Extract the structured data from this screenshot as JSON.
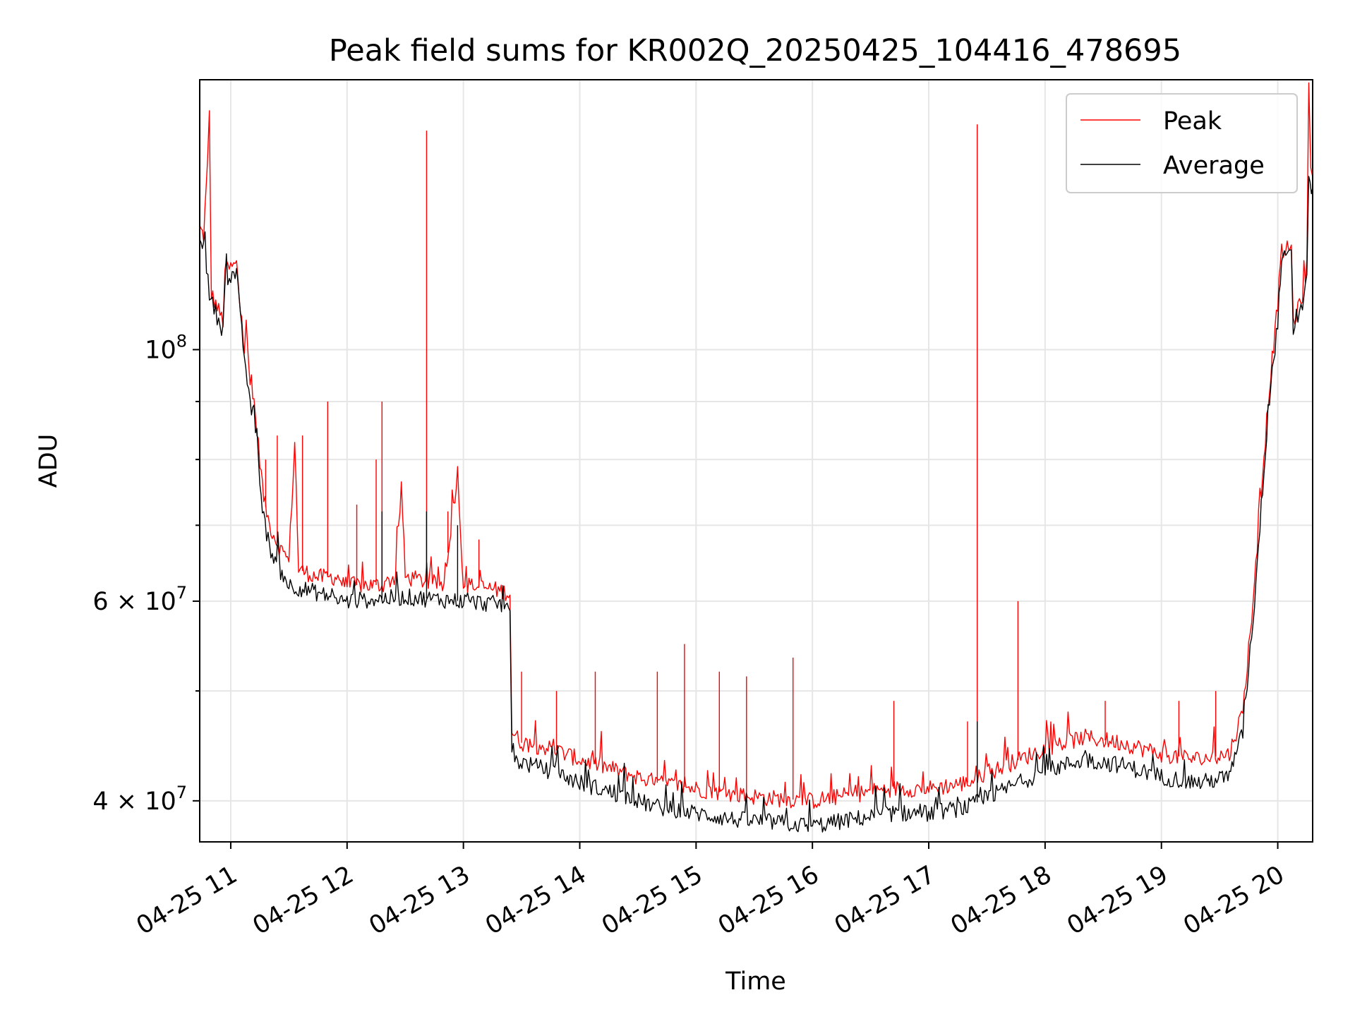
{
  "chart_data": {
    "type": "line",
    "title": "Peak field sums for KR002Q_20250425_104416_478695",
    "xlabel": "Time",
    "ylabel": "ADU",
    "yscale": "log",
    "grid": true,
    "legend_position": "top-right",
    "xlim": [
      "2025-04-25 10:44",
      "2025-04-25 20:18"
    ],
    "ylim": [
      36800000,
      173000000
    ],
    "x_ticks": [
      {
        "at": "2025-04-25 11:00",
        "label": "04-25 11"
      },
      {
        "at": "2025-04-25 12:00",
        "label": "04-25 12"
      },
      {
        "at": "2025-04-25 13:00",
        "label": "04-25 13"
      },
      {
        "at": "2025-04-25 14:00",
        "label": "04-25 14"
      },
      {
        "at": "2025-04-25 15:00",
        "label": "04-25 15"
      },
      {
        "at": "2025-04-25 16:00",
        "label": "04-25 16"
      },
      {
        "at": "2025-04-25 17:00",
        "label": "04-25 17"
      },
      {
        "at": "2025-04-25 18:00",
        "label": "04-25 18"
      },
      {
        "at": "2025-04-25 19:00",
        "label": "04-25 19"
      },
      {
        "at": "2025-04-25 20:00",
        "label": "04-25 20"
      }
    ],
    "y_ticks": [
      {
        "value": 40000000,
        "label_base": "4 × 10",
        "label_exp": "7"
      },
      {
        "value": 60000000,
        "label_base": "6 × 10",
        "label_exp": "7"
      },
      {
        "value": 100000000,
        "label_base": "10",
        "label_exp": "8"
      }
    ],
    "y_minor_ticks": [
      50000000,
      70000000,
      80000000,
      90000000
    ],
    "series": [
      {
        "name": "Peak",
        "color": "#ff0000",
        "points": [
          [
            "2025-04-25 10:44",
            128000000
          ],
          [
            "2025-04-25 10:46",
            126000000
          ],
          [
            "2025-04-25 10:48",
            145000000
          ],
          [
            "2025-04-25 10:49",
            162000000
          ],
          [
            "2025-04-25 10:50",
            112000000
          ],
          [
            "2025-04-25 10:53",
            109000000
          ],
          [
            "2025-04-25 10:56",
            106000000
          ],
          [
            "2025-04-25 10:57",
            118000000
          ],
          [
            "2025-04-25 11:00",
            118000000
          ],
          [
            "2025-04-25 11:03",
            119000000
          ],
          [
            "2025-04-25 11:05",
            108000000
          ],
          [
            "2025-04-25 11:07",
            101000000
          ],
          [
            "2025-04-25 11:08",
            107000000
          ],
          [
            "2025-04-25 11:10",
            92000000
          ],
          [
            "2025-04-25 11:12",
            90000000
          ],
          [
            "2025-04-25 11:15",
            80000000
          ],
          [
            "2025-04-25 11:17",
            74000000
          ],
          [
            "2025-04-25 11:20",
            70000000
          ],
          [
            "2025-04-25 11:25",
            67000000
          ],
          [
            "2025-04-25 11:30",
            65000000
          ],
          [
            "2025-04-25 11:33",
            83000000
          ],
          [
            "2025-04-25 11:35",
            64000000
          ],
          [
            "2025-04-25 11:45",
            63000000
          ],
          [
            "2025-04-25 11:56",
            63000000
          ],
          [
            "2025-04-25 11:58",
            62000000
          ],
          [
            "2025-04-25 12:00",
            62000000
          ],
          [
            "2025-04-25 12:18",
            62000000
          ],
          [
            "2025-04-25 12:25",
            63000000
          ],
          [
            "2025-04-25 12:28",
            76000000
          ],
          [
            "2025-04-25 12:30",
            63000000
          ],
          [
            "2025-04-25 12:50",
            62000000
          ],
          [
            "2025-04-25 12:57",
            78000000
          ],
          [
            "2025-04-25 13:00",
            62000000
          ],
          [
            "2025-04-25 13:15",
            61500000
          ],
          [
            "2025-04-25 13:24",
            61000000
          ],
          [
            "2025-04-25 13:25",
            46000000
          ],
          [
            "2025-04-25 13:30",
            45000000
          ],
          [
            "2025-04-25 13:45",
            44500000
          ],
          [
            "2025-04-25 14:00",
            43500000
          ],
          [
            "2025-04-25 14:20",
            42500000
          ],
          [
            "2025-04-25 14:40",
            41500000
          ],
          [
            "2025-04-25 15:00",
            41000000
          ],
          [
            "2025-04-25 15:20",
            40500000
          ],
          [
            "2025-04-25 15:40",
            40200000
          ],
          [
            "2025-04-25 16:00",
            40000000
          ],
          [
            "2025-04-25 16:20",
            40500000
          ],
          [
            "2025-04-25 16:40",
            41000000
          ],
          [
            "2025-04-25 17:00",
            41000000
          ],
          [
            "2025-04-25 17:20",
            41500000
          ],
          [
            "2025-04-25 17:40",
            43000000
          ],
          [
            "2025-04-25 18:00",
            44500000
          ],
          [
            "2025-04-25 18:20",
            45500000
          ],
          [
            "2025-04-25 18:40",
            45000000
          ],
          [
            "2025-04-25 19:00",
            44000000
          ],
          [
            "2025-04-25 19:20",
            43500000
          ],
          [
            "2025-04-25 19:35",
            44000000
          ],
          [
            "2025-04-25 19:42",
            48000000
          ],
          [
            "2025-04-25 19:48",
            62000000
          ],
          [
            "2025-04-25 19:55",
            90000000
          ],
          [
            "2025-04-25 20:00",
            110000000
          ],
          [
            "2025-04-25 20:02",
            122000000
          ],
          [
            "2025-04-25 20:07",
            123000000
          ],
          [
            "2025-04-25 20:08",
            106000000
          ],
          [
            "2025-04-25 20:12",
            110000000
          ],
          [
            "2025-04-25 20:15",
            118000000
          ],
          [
            "2025-04-25 20:16",
            172000000
          ],
          [
            "2025-04-25 20:17",
            145000000
          ],
          [
            "2025-04-25 20:18",
            142000000
          ]
        ],
        "spikes": [
          [
            "2025-04-25 11:08",
            107000000
          ],
          [
            "2025-04-25 11:18",
            80000000
          ],
          [
            "2025-04-25 11:24",
            84000000
          ],
          [
            "2025-04-25 11:37",
            84000000
          ],
          [
            "2025-04-25 11:50",
            90000000
          ],
          [
            "2025-04-25 12:05",
            73000000
          ],
          [
            "2025-04-25 12:15",
            80000000
          ],
          [
            "2025-04-25 12:18",
            90000000
          ],
          [
            "2025-04-25 12:41",
            156000000
          ],
          [
            "2025-04-25 12:52",
            72000000
          ],
          [
            "2025-04-25 13:08",
            68000000
          ],
          [
            "2025-04-25 13:30",
            52000000
          ],
          [
            "2025-04-25 13:48",
            50000000
          ],
          [
            "2025-04-25 14:08",
            52000000
          ],
          [
            "2025-04-25 14:40",
            52000000
          ],
          [
            "2025-04-25 14:54",
            55000000
          ],
          [
            "2025-04-25 15:12",
            52000000
          ],
          [
            "2025-04-25 15:26",
            51500000
          ],
          [
            "2025-04-25 15:50",
            53500000
          ],
          [
            "2025-04-25 16:42",
            49000000
          ],
          [
            "2025-04-25 17:20",
            47000000
          ],
          [
            "2025-04-25 17:25",
            158000000
          ],
          [
            "2025-04-25 17:46",
            60000000
          ],
          [
            "2025-04-25 18:31",
            49000000
          ],
          [
            "2025-04-25 19:09",
            49000000
          ],
          [
            "2025-04-25 19:28",
            50000000
          ]
        ]
      },
      {
        "name": "Average",
        "color": "#000000",
        "points": [
          [
            "2025-04-25 10:44",
            127000000
          ],
          [
            "2025-04-25 10:46",
            123000000
          ],
          [
            "2025-04-25 10:49",
            112000000
          ],
          [
            "2025-04-25 10:53",
            107000000
          ],
          [
            "2025-04-25 10:56",
            104000000
          ],
          [
            "2025-04-25 10:57",
            116000000
          ],
          [
            "2025-04-25 11:00",
            116000000
          ],
          [
            "2025-04-25 11:03",
            117000000
          ],
          [
            "2025-04-25 11:05",
            106000000
          ],
          [
            "2025-04-25 11:07",
            99000000
          ],
          [
            "2025-04-25 11:10",
            89000000
          ],
          [
            "2025-04-25 11:12",
            88000000
          ],
          [
            "2025-04-25 11:15",
            77000000
          ],
          [
            "2025-04-25 11:17",
            71000000
          ],
          [
            "2025-04-25 11:20",
            67000000
          ],
          [
            "2025-04-25 11:25",
            64000000
          ],
          [
            "2025-04-25 11:30",
            62000000
          ],
          [
            "2025-04-25 11:45",
            61000000
          ],
          [
            "2025-04-25 11:58",
            60000000
          ],
          [
            "2025-04-25 12:00",
            60000000
          ],
          [
            "2025-04-25 12:30",
            60500000
          ],
          [
            "2025-04-25 13:00",
            60000000
          ],
          [
            "2025-04-25 13:24",
            59500000
          ],
          [
            "2025-04-25 13:25",
            43500000
          ],
          [
            "2025-04-25 13:45",
            42500000
          ],
          [
            "2025-04-25 14:00",
            41500000
          ],
          [
            "2025-04-25 14:20",
            40500000
          ],
          [
            "2025-04-25 14:40",
            39500000
          ],
          [
            "2025-04-25 15:00",
            39000000
          ],
          [
            "2025-04-25 15:20",
            38500000
          ],
          [
            "2025-04-25 15:40",
            38300000
          ],
          [
            "2025-04-25 16:00",
            38000000
          ],
          [
            "2025-04-25 16:20",
            38500000
          ],
          [
            "2025-04-25 16:40",
            39000000
          ],
          [
            "2025-04-25 17:00",
            39000000
          ],
          [
            "2025-04-25 17:20",
            39500000
          ],
          [
            "2025-04-25 17:40",
            41000000
          ],
          [
            "2025-04-25 18:00",
            42500000
          ],
          [
            "2025-04-25 18:20",
            43500000
          ],
          [
            "2025-04-25 18:40",
            43000000
          ],
          [
            "2025-04-25 19:00",
            42000000
          ],
          [
            "2025-04-25 19:20",
            41500000
          ],
          [
            "2025-04-25 19:35",
            42000000
          ],
          [
            "2025-04-25 19:42",
            46000000
          ],
          [
            "2025-04-25 19:48",
            60000000
          ],
          [
            "2025-04-25 19:55",
            88000000
          ],
          [
            "2025-04-25 20:00",
            106000000
          ],
          [
            "2025-04-25 20:02",
            120000000
          ],
          [
            "2025-04-25 20:07",
            121000000
          ],
          [
            "2025-04-25 20:08",
            104000000
          ],
          [
            "2025-04-25 20:12",
            108000000
          ],
          [
            "2025-04-25 20:15",
            116000000
          ],
          [
            "2025-04-25 20:16",
            140000000
          ],
          [
            "2025-04-25 20:18",
            139000000
          ]
        ],
        "spikes": [
          [
            "2025-04-25 12:18",
            72000000
          ],
          [
            "2025-04-25 12:41",
            72000000
          ],
          [
            "2025-04-25 12:57",
            70000000
          ],
          [
            "2025-04-25 17:25",
            47000000
          ]
        ]
      }
    ]
  }
}
